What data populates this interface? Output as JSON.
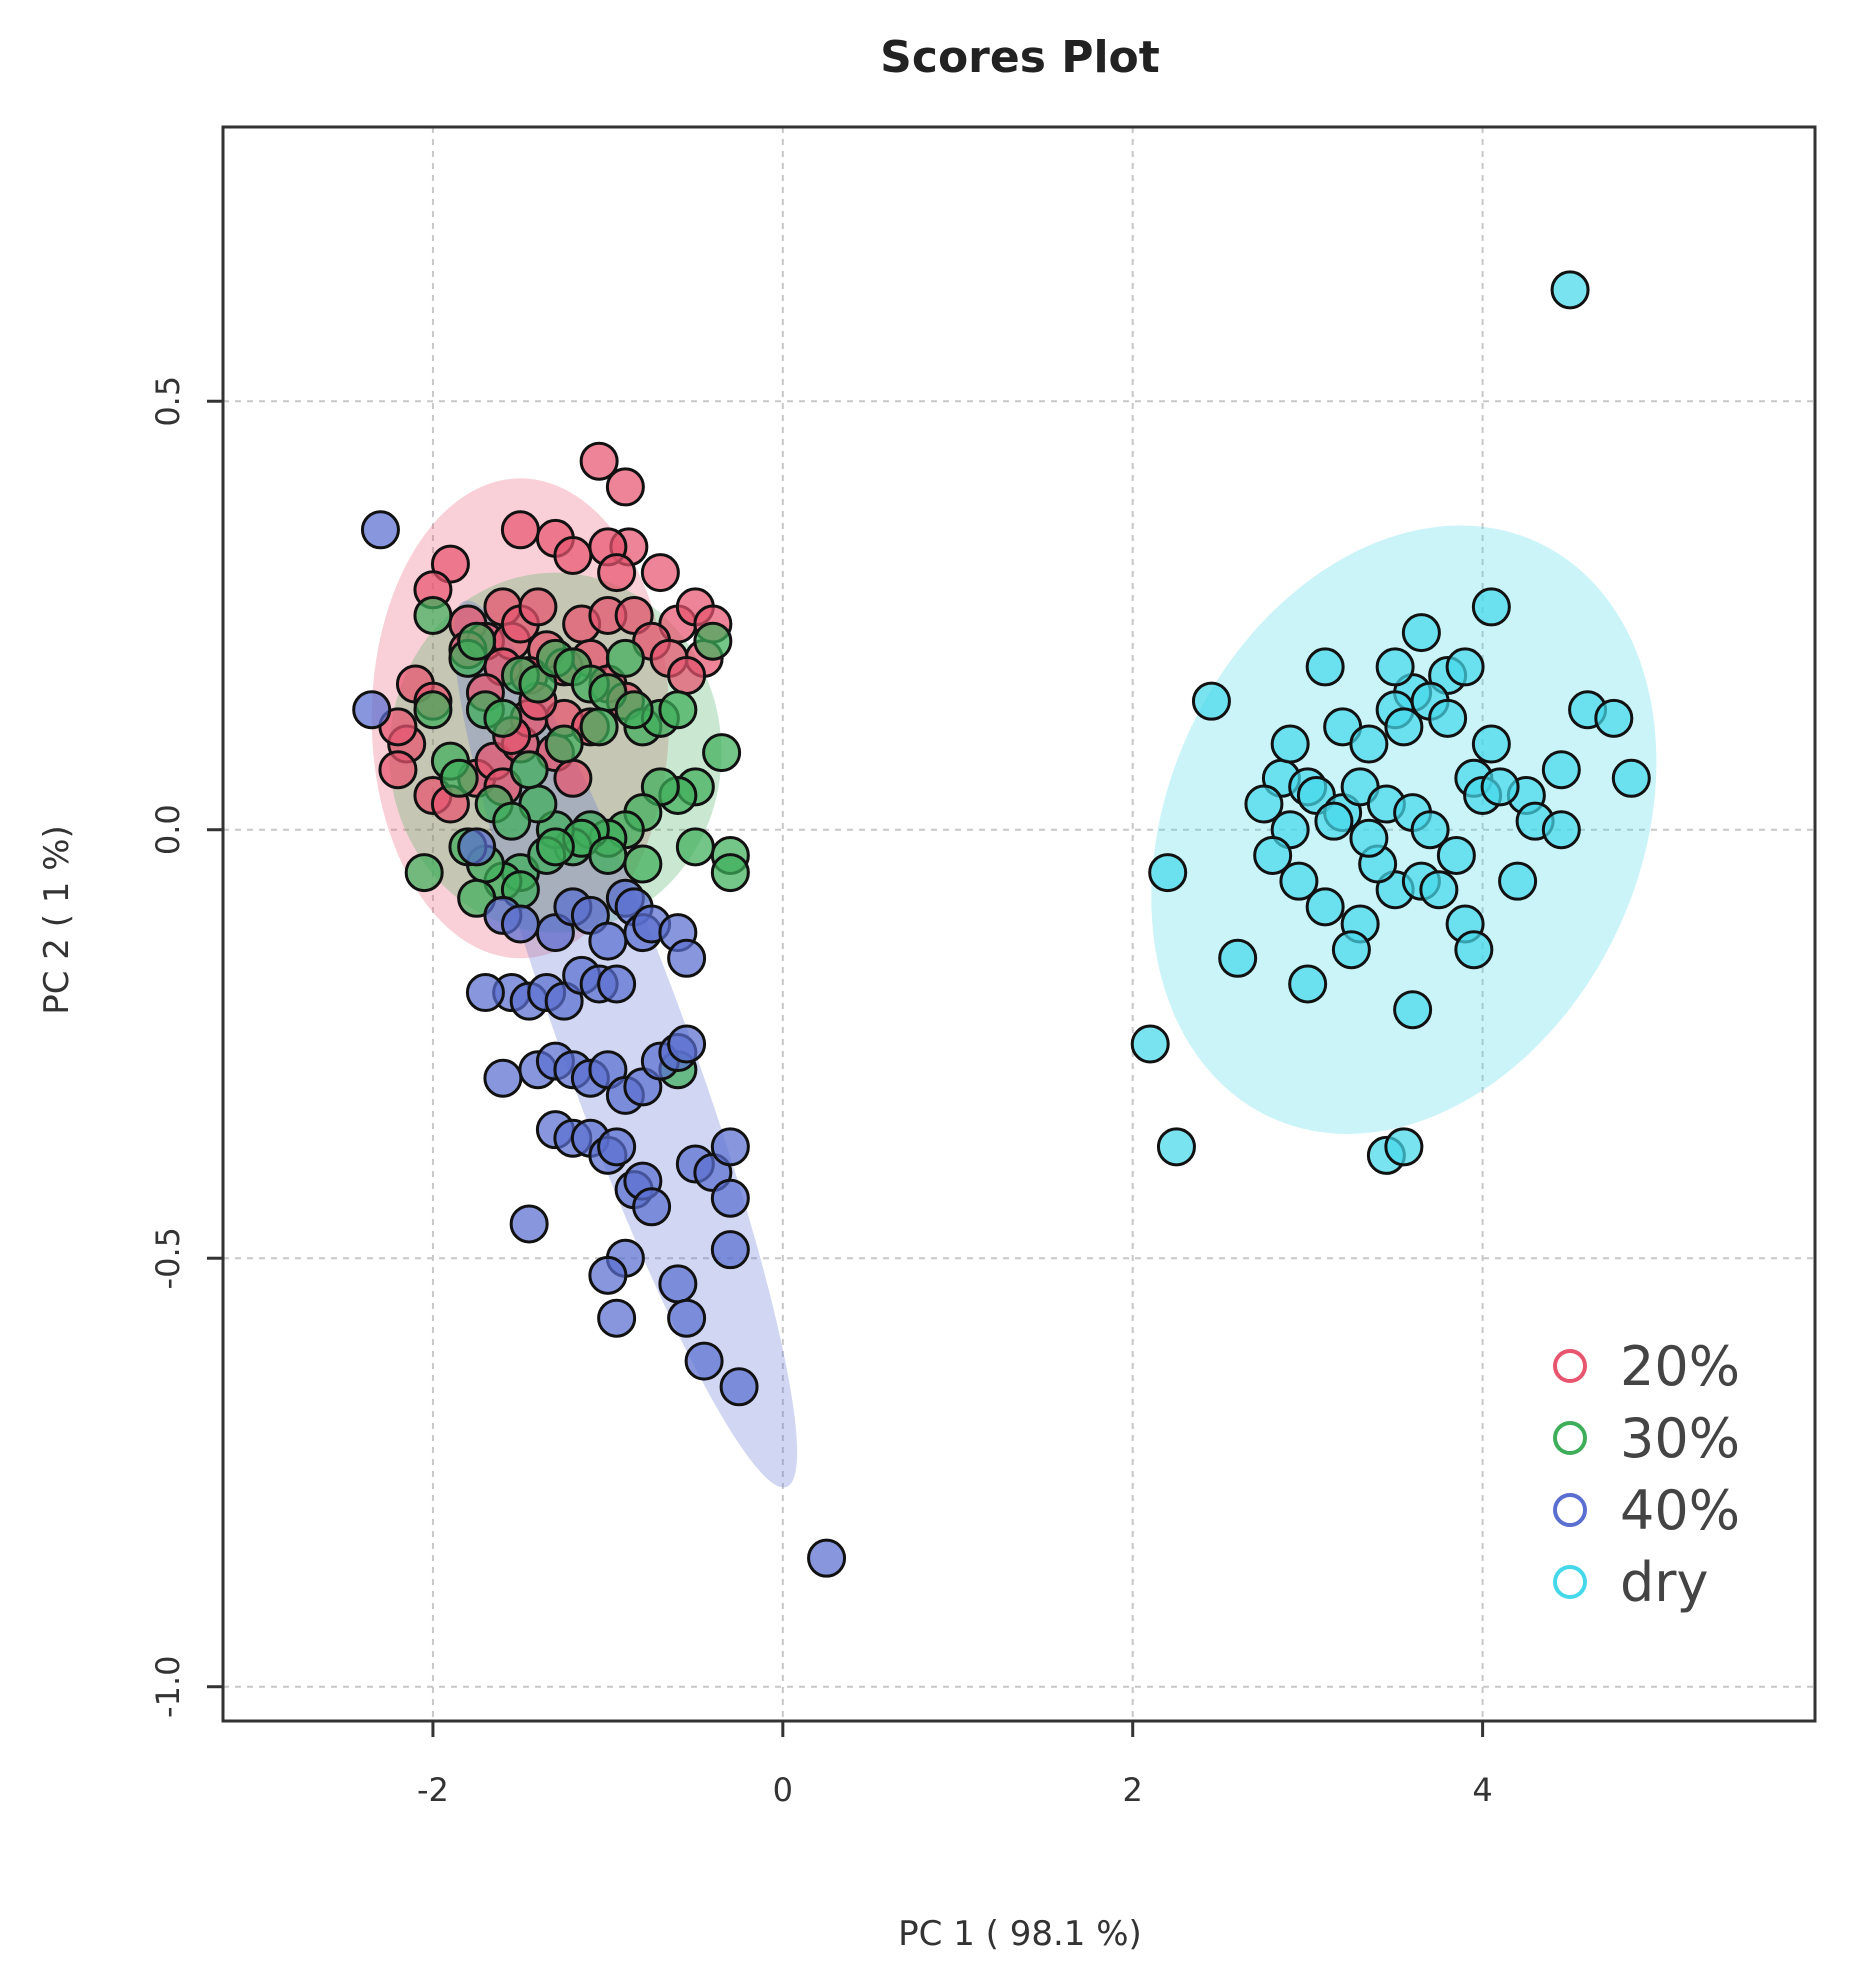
{
  "chart_data": {
    "type": "scatter",
    "title": "Scores Plot",
    "xlabel": "PC 1 ( 98.1 %)",
    "ylabel": "PC 2 ( 1 %)",
    "xlim": [
      -3.2,
      5.9
    ],
    "ylim": [
      -1.04,
      0.82
    ],
    "xticks": [
      -2,
      0,
      2,
      4
    ],
    "yticks": [
      0.5,
      0.0,
      -0.5,
      -1.0
    ],
    "xtick_labels": [
      "-2",
      "0",
      "2",
      "4"
    ],
    "ytick_labels": [
      "0.5",
      "0.0",
      "-0.5",
      "-1.0"
    ],
    "grid": true,
    "legend_position": "bottom-right",
    "series": [
      {
        "name": "20%",
        "color": "#e8556f",
        "ellipse": {
          "cx": -1.5,
          "cy": 0.13,
          "rx": 0.85,
          "ry": 0.28,
          "angle_deg": 0
        },
        "x": [
          -1.05,
          -0.9,
          -0.88,
          -1.5,
          -1.6,
          -1.3,
          -1.2,
          -1.0,
          -0.95,
          -1.9,
          -2.0,
          -2.1,
          -2.0,
          -1.8,
          -1.7,
          -1.55,
          -1.5,
          -1.4,
          -1.35,
          -1.25,
          -1.15,
          -1.1,
          -1.0,
          -0.85,
          -0.7,
          -0.6,
          -0.5,
          -0.45,
          -0.4,
          -2.15,
          -2.2,
          -2.2,
          -2.0,
          -1.9,
          -1.75,
          -1.65,
          -1.6,
          -1.5,
          -1.45,
          -1.3,
          -1.2,
          -1.0,
          -0.9,
          -0.75,
          -0.65,
          -0.55,
          -1.6,
          -1.7,
          -1.45,
          -1.25,
          -1.8,
          -1.55,
          -1.4,
          -1.1
        ],
        "y": [
          0.43,
          0.4,
          0.33,
          0.35,
          0.26,
          0.34,
          0.32,
          0.33,
          0.3,
          0.31,
          0.28,
          0.17,
          0.15,
          0.24,
          0.22,
          0.22,
          0.24,
          0.26,
          0.21,
          0.19,
          0.24,
          0.2,
          0.25,
          0.25,
          0.3,
          0.24,
          0.26,
          0.2,
          0.24,
          0.1,
          0.07,
          0.12,
          0.04,
          0.03,
          0.06,
          0.08,
          0.05,
          0.1,
          0.13,
          0.09,
          0.06,
          0.17,
          0.15,
          0.22,
          0.2,
          0.18,
          0.19,
          0.16,
          0.18,
          0.13,
          0.21,
          0.11,
          0.15,
          0.12
        ]
      },
      {
        "name": "30%",
        "color": "#3fae5a",
        "ellipse": {
          "cx": -1.3,
          "cy": 0.09,
          "rx": 0.95,
          "ry": 0.21,
          "angle_deg": 0
        },
        "x": [
          -2.0,
          -1.8,
          -1.75,
          -1.7,
          -1.6,
          -1.5,
          -1.4,
          -1.3,
          -1.2,
          -1.1,
          -1.0,
          -0.9,
          -0.8,
          -0.7,
          -0.6,
          -0.5,
          -0.4,
          -0.35,
          -0.3,
          -0.3,
          -0.5,
          -0.6,
          -0.7,
          -0.8,
          -0.9,
          -1.0,
          -1.1,
          -1.2,
          -1.3,
          -1.4,
          -1.5,
          -1.6,
          -1.7,
          -1.8,
          -1.9,
          -2.0,
          -2.05,
          -1.85,
          -1.65,
          -1.45,
          -1.25,
          -1.05,
          -0.85,
          -1.15,
          -1.35,
          -1.55,
          -1.75,
          -1.5,
          -1.3,
          -1.0,
          -0.8,
          -0.6
        ],
        "y": [
          0.25,
          0.2,
          0.22,
          0.14,
          0.13,
          0.18,
          0.17,
          0.2,
          0.19,
          0.17,
          0.16,
          0.2,
          0.12,
          0.13,
          0.14,
          0.05,
          0.22,
          0.09,
          -0.03,
          -0.05,
          -0.02,
          0.04,
          0.05,
          0.02,
          0.0,
          -0.01,
          0.0,
          -0.02,
          0.0,
          0.03,
          -0.05,
          -0.06,
          -0.04,
          -0.02,
          0.08,
          0.14,
          -0.05,
          0.06,
          0.03,
          0.07,
          0.1,
          0.12,
          0.14,
          -0.01,
          -0.03,
          0.01,
          -0.08,
          -0.07,
          -0.02,
          -0.03,
          -0.04,
          -0.28
        ],
        "note": "dense overlapping cluster"
      },
      {
        "name": "40%",
        "color": "#5a6fd0",
        "ellipse": {
          "cx": -0.9,
          "cy": -0.25,
          "rx": 0.36,
          "ry": 0.55,
          "angle_deg": -20
        },
        "x": [
          -2.3,
          -2.35,
          -1.75,
          -1.6,
          -1.5,
          -1.3,
          -1.2,
          -1.1,
          -1.0,
          -0.9,
          -0.85,
          -0.8,
          -0.75,
          -0.6,
          -0.55,
          -1.55,
          -1.45,
          -1.35,
          -1.25,
          -1.15,
          -1.05,
          -0.95,
          -1.4,
          -1.3,
          -1.2,
          -1.1,
          -1.0,
          -0.9,
          -0.8,
          -0.7,
          -0.6,
          -0.55,
          -1.3,
          -1.2,
          -1.1,
          -1.0,
          -0.95,
          -0.85,
          -0.8,
          -0.75,
          -0.5,
          -0.4,
          -0.3,
          -0.3,
          -0.9,
          -0.6,
          -0.55,
          -0.45,
          -0.3,
          -0.25,
          -1.45,
          -1.0,
          -0.95,
          0.25,
          -1.7,
          -1.6
        ],
        "y": [
          0.35,
          0.14,
          -0.02,
          -0.1,
          -0.11,
          -0.12,
          -0.09,
          -0.1,
          -0.13,
          -0.08,
          -0.09,
          -0.12,
          -0.11,
          -0.12,
          -0.15,
          -0.19,
          -0.2,
          -0.19,
          -0.2,
          -0.17,
          -0.18,
          -0.18,
          -0.28,
          -0.27,
          -0.28,
          -0.29,
          -0.28,
          -0.31,
          -0.3,
          -0.27,
          -0.26,
          -0.25,
          -0.35,
          -0.36,
          -0.36,
          -0.38,
          -0.37,
          -0.42,
          -0.41,
          -0.44,
          -0.39,
          -0.4,
          -0.37,
          -0.43,
          -0.5,
          -0.53,
          -0.57,
          -0.62,
          -0.49,
          -0.65,
          -0.46,
          -0.52,
          -0.57,
          -0.85,
          -0.19,
          -0.29
        ]
      },
      {
        "name": "dry",
        "color": "#45d8ea",
        "ellipse": {
          "cx": 3.55,
          "cy": 0.0,
          "rx": 1.35,
          "ry": 0.37,
          "angle_deg": 25
        },
        "x": [
          4.5,
          2.45,
          3.1,
          3.6,
          3.8,
          4.05,
          3.5,
          3.65,
          3.9,
          2.85,
          2.9,
          3.0,
          3.2,
          3.35,
          3.5,
          3.55,
          3.7,
          3.8,
          3.95,
          4.05,
          4.25,
          4.45,
          4.6,
          4.75,
          4.85,
          2.75,
          2.9,
          3.05,
          3.2,
          3.3,
          3.45,
          3.6,
          3.7,
          3.85,
          4.0,
          4.1,
          4.3,
          4.45,
          2.2,
          2.8,
          2.95,
          3.1,
          3.3,
          3.5,
          3.65,
          3.75,
          4.2,
          3.9,
          2.6,
          3.0,
          3.25,
          3.95,
          2.1,
          3.6,
          2.25,
          3.45,
          3.55,
          3.4,
          3.15,
          3.35
        ],
        "y": [
          0.63,
          0.15,
          0.19,
          0.16,
          0.18,
          0.26,
          0.19,
          0.23,
          0.19,
          0.06,
          0.1,
          0.05,
          0.12,
          0.1,
          0.14,
          0.12,
          0.15,
          0.13,
          0.06,
          0.1,
          0.04,
          0.07,
          0.14,
          0.13,
          0.06,
          0.03,
          0.0,
          0.04,
          0.02,
          0.05,
          0.03,
          0.02,
          0.0,
          -0.03,
          0.04,
          0.05,
          0.01,
          0.0,
          -0.05,
          -0.03,
          -0.06,
          -0.09,
          -0.11,
          -0.07,
          -0.06,
          -0.07,
          -0.06,
          -0.11,
          -0.15,
          -0.18,
          -0.14,
          -0.14,
          -0.25,
          -0.21,
          -0.37,
          -0.38,
          -0.37,
          -0.04,
          0.01,
          -0.01
        ]
      }
    ]
  }
}
